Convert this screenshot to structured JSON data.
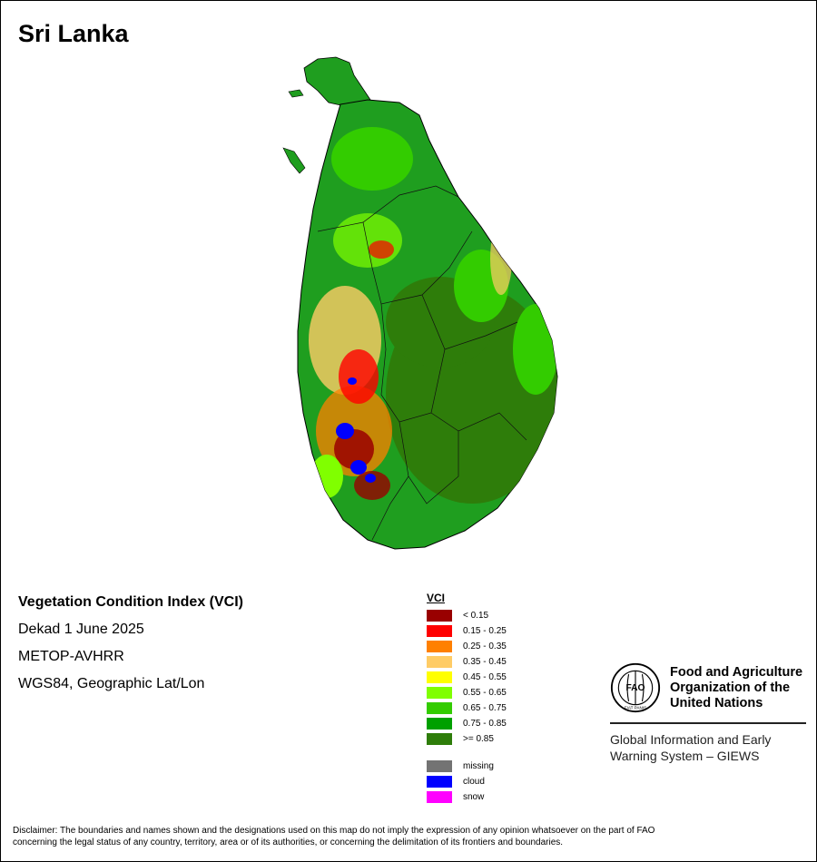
{
  "map_title": "Sri Lanka",
  "info": {
    "heading": "Vegetation Condition Index (VCI)",
    "period": "Dekad 1 June 2025",
    "sensor": "METOP-AVHRR",
    "projection": "WGS84, Geographic Lat/Lon"
  },
  "legend": {
    "title": "VCI",
    "classes": [
      {
        "label": "< 0.15",
        "color": "#990000"
      },
      {
        "label": "0.15 - 0.25",
        "color": "#ff0000"
      },
      {
        "label": "0.25 - 0.35",
        "color": "#ff8000"
      },
      {
        "label": "0.35 - 0.45",
        "color": "#ffcc66"
      },
      {
        "label": "0.45 - 0.55",
        "color": "#ffff00"
      },
      {
        "label": "0.55 - 0.65",
        "color": "#80ff00"
      },
      {
        "label": "0.65 - 0.75",
        "color": "#33cc00"
      },
      {
        "label": "0.75 - 0.85",
        "color": "#00a000"
      },
      {
        "label": ">= 0.85",
        "color": "#2e7d0a"
      }
    ],
    "special": [
      {
        "label": "missing",
        "color": "#737373"
      },
      {
        "label": "cloud",
        "color": "#0000ff"
      },
      {
        "label": "snow",
        "color": "#ff00ff"
      }
    ]
  },
  "organization": {
    "name_line1": "Food and Agriculture",
    "name_line2": "Organization of the",
    "name_line3": "United Nations",
    "logo_text": "FAO",
    "logo_motto": "FIAT PANIS",
    "system_line1": "Global Information and Early",
    "system_line2": "Warning System – GIEWS"
  },
  "disclaimer_line1": "Disclaimer: The boundaries and names shown and the designations used on this map do not imply the expression of any opinion whatsoever on the part of FAO",
  "disclaimer_line2": "concerning the legal status of any country, territory, area or of its authorities, or concerning the delimitation of its frontiers and boundaries."
}
